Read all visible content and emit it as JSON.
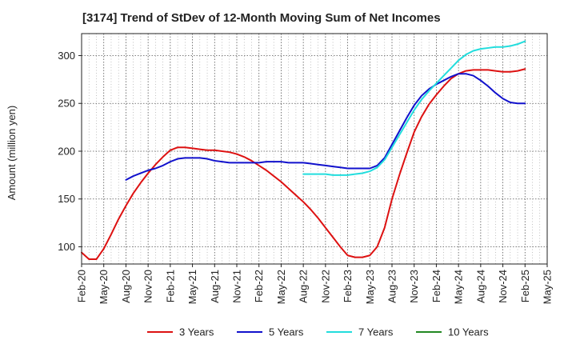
{
  "chart_data": {
    "type": "line",
    "title": "[3174]  Trend of StDev of 12-Month Moving Sum of Net Incomes",
    "ylabel": "Amount (million yen)",
    "xlabel": "",
    "x_ticks": [
      "Feb-20",
      "May-20",
      "Aug-20",
      "Nov-20",
      "Feb-21",
      "May-21",
      "Aug-21",
      "Nov-21",
      "Feb-22",
      "May-22",
      "Aug-22",
      "Nov-22",
      "Feb-23",
      "May-23",
      "Aug-23",
      "Nov-23",
      "Feb-24",
      "May-24",
      "Aug-24",
      "Nov-24",
      "Feb-25",
      "May-25"
    ],
    "y_ticks": [
      100,
      150,
      200,
      250,
      300
    ],
    "ylim": [
      82,
      323
    ],
    "grid": true,
    "legend_position": "bottom",
    "series": [
      {
        "name": "3 Years",
        "color": "#dd1111",
        "x": [
          "Feb-20",
          "Mar-20",
          "Apr-20",
          "May-20",
          "Jun-20",
          "Jul-20",
          "Aug-20",
          "Sep-20",
          "Oct-20",
          "Nov-20",
          "Dec-20",
          "Jan-21",
          "Feb-21",
          "Mar-21",
          "Apr-21",
          "May-21",
          "Jun-21",
          "Jul-21",
          "Aug-21",
          "Sep-21",
          "Oct-21",
          "Nov-21",
          "Dec-21",
          "Jan-22",
          "Feb-22",
          "Mar-22",
          "Apr-22",
          "May-22",
          "Jun-22",
          "Jul-22",
          "Aug-22",
          "Sep-22",
          "Oct-22",
          "Nov-22",
          "Dec-22",
          "Jan-23",
          "Feb-23",
          "Mar-23",
          "Apr-23",
          "May-23",
          "Jun-23",
          "Jul-23",
          "Aug-23",
          "Sep-23",
          "Oct-23",
          "Nov-23",
          "Dec-23",
          "Jan-24",
          "Feb-24",
          "Mar-24",
          "Apr-24",
          "May-24",
          "Jun-24",
          "Jul-24",
          "Aug-24",
          "Sep-24",
          "Oct-24",
          "Nov-24",
          "Dec-24",
          "Jan-25",
          "Feb-25"
        ],
        "values": [
          94,
          87,
          87,
          98,
          113,
          129,
          143,
          156,
          167,
          177,
          186,
          194,
          201,
          204,
          204,
          203,
          202,
          201,
          201,
          200,
          199,
          197,
          194,
          190,
          185,
          180,
          174,
          168,
          161,
          154,
          147,
          139,
          130,
          120,
          110,
          100,
          91,
          89,
          89,
          91,
          100,
          120,
          150,
          175,
          198,
          220,
          236,
          249,
          259,
          268,
          276,
          281,
          284,
          285,
          285,
          285,
          284,
          283,
          283,
          284,
          286
        ]
      },
      {
        "name": "5 Years",
        "color": "#1111cc",
        "x": [
          "Aug-20",
          "Sep-20",
          "Oct-20",
          "Nov-20",
          "Dec-20",
          "Jan-21",
          "Feb-21",
          "Mar-21",
          "Apr-21",
          "May-21",
          "Jun-21",
          "Jul-21",
          "Aug-21",
          "Sep-21",
          "Oct-21",
          "Nov-21",
          "Dec-21",
          "Jan-22",
          "Feb-22",
          "Mar-22",
          "Apr-22",
          "May-22",
          "Jun-22",
          "Jul-22",
          "Aug-22",
          "Sep-22",
          "Oct-22",
          "Nov-22",
          "Dec-22",
          "Jan-23",
          "Feb-23",
          "Mar-23",
          "Apr-23",
          "May-23",
          "Jun-23",
          "Jul-23",
          "Aug-23",
          "Sep-23",
          "Oct-23",
          "Nov-23",
          "Dec-23",
          "Jan-24",
          "Feb-24",
          "Mar-24",
          "Apr-24",
          "May-24",
          "Jun-24",
          "Jul-24",
          "Aug-24",
          "Sep-24",
          "Oct-24",
          "Nov-24",
          "Dec-24",
          "Jan-25",
          "Feb-25"
        ],
        "values": [
          170,
          174,
          177,
          180,
          182,
          185,
          189,
          192,
          193,
          193,
          193,
          192,
          190,
          189,
          188,
          188,
          188,
          188,
          188,
          189,
          189,
          189,
          188,
          188,
          188,
          187,
          186,
          185,
          184,
          183,
          182,
          182,
          182,
          182,
          185,
          193,
          207,
          221,
          235,
          248,
          258,
          265,
          270,
          274,
          278,
          281,
          281,
          279,
          274,
          268,
          261,
          255,
          251,
          250,
          250
        ]
      },
      {
        "name": "7 Years",
        "color": "#22dddd",
        "x": [
          "Aug-22",
          "Sep-22",
          "Oct-22",
          "Nov-22",
          "Dec-22",
          "Jan-23",
          "Feb-23",
          "Mar-23",
          "Apr-23",
          "May-23",
          "Jun-23",
          "Jul-23",
          "Aug-23",
          "Sep-23",
          "Oct-23",
          "Nov-23",
          "Dec-23",
          "Jan-24",
          "Feb-24",
          "Mar-24",
          "Apr-24",
          "May-24",
          "Jun-24",
          "Jul-24",
          "Aug-24",
          "Sep-24",
          "Oct-24",
          "Nov-24",
          "Dec-24",
          "Jan-25",
          "Feb-25"
        ],
        "values": [
          176,
          176,
          176,
          176,
          175,
          175,
          175,
          176,
          177,
          179,
          183,
          191,
          204,
          217,
          230,
          243,
          254,
          263,
          271,
          279,
          287,
          295,
          301,
          305,
          307,
          308,
          309,
          309,
          310,
          312,
          315
        ]
      },
      {
        "name": "10 Years",
        "color": "#228822",
        "x": [],
        "values": []
      }
    ]
  }
}
